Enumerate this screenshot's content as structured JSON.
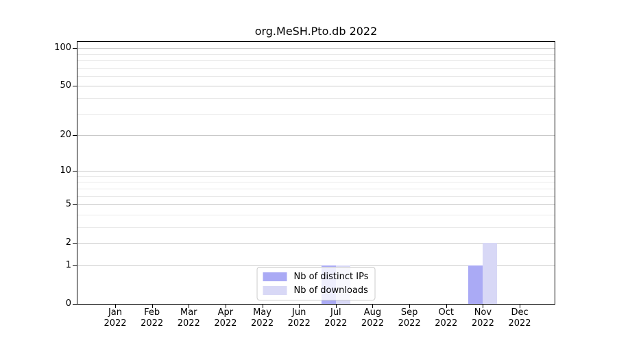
{
  "chart_data": {
    "type": "bar",
    "title": "org.MeSH.Pto.db 2022",
    "categories": [
      "Jan",
      "Feb",
      "Mar",
      "Apr",
      "May",
      "Jun",
      "Jul",
      "Aug",
      "Sep",
      "Oct",
      "Nov",
      "Dec"
    ],
    "year": "2022",
    "series": [
      {
        "name": "Nb of distinct IPs",
        "color": "#aaaaf5",
        "values": [
          0,
          0,
          0,
          0,
          0,
          0,
          1,
          0,
          0,
          0,
          1,
          0
        ]
      },
      {
        "name": "Nb of downloads",
        "color": "#d8d8f6",
        "values": [
          0,
          0,
          0,
          0,
          0,
          0,
          1,
          0,
          0,
          0,
          2,
          0
        ]
      }
    ],
    "yscale": "log1p",
    "yticks": [
      0,
      1,
      2,
      5,
      10,
      20,
      50,
      100
    ],
    "minor_yticks": [
      3,
      4,
      6,
      7,
      8,
      9,
      30,
      40,
      60,
      70,
      80,
      90
    ],
    "ylim": [
      0,
      113
    ],
    "grid": true,
    "legend_position": "lower center",
    "colors": {
      "major_grid": "#c9c9c9",
      "minor_grid": "#e9e9e9",
      "axis": "#000000",
      "background": "#ffffff"
    }
  }
}
